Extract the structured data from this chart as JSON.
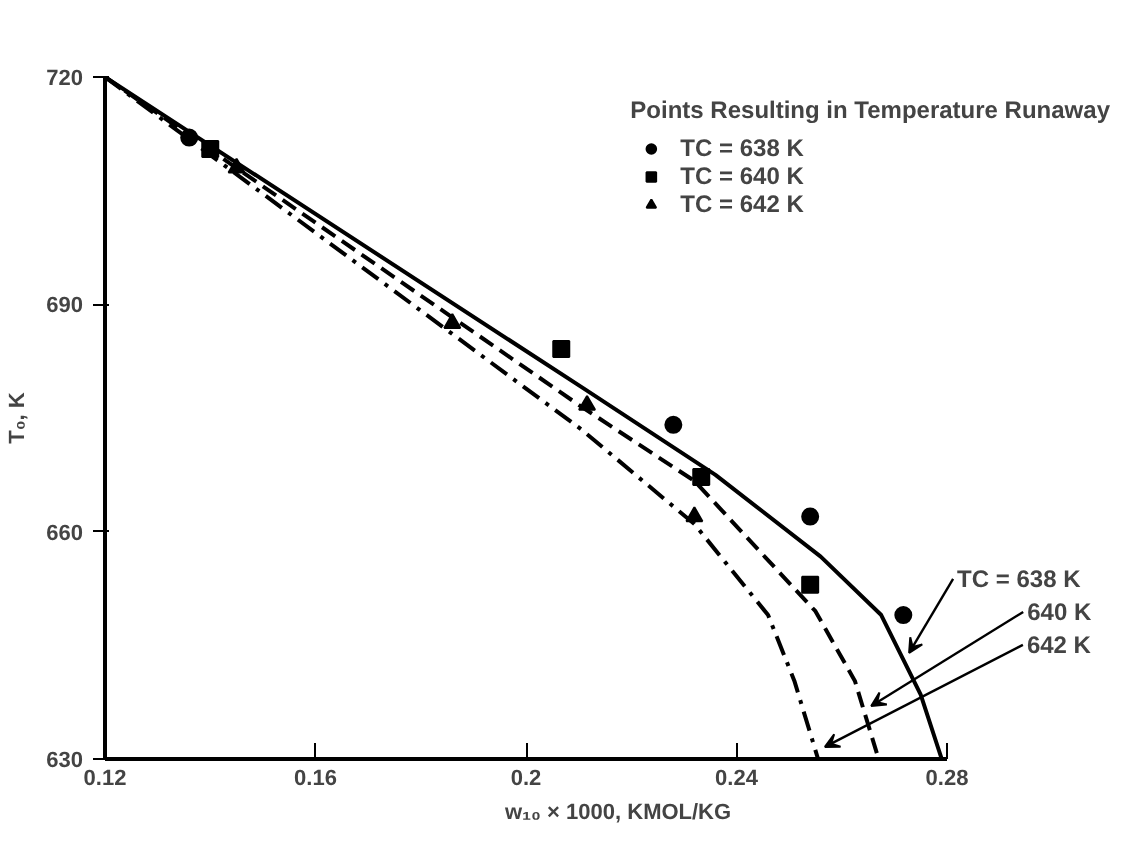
{
  "chart_data": {
    "type": "line",
    "xlabel": "w₁₀ × 1000, KMOL/KG",
    "ylabel": "T₀, K",
    "legend_title": "Points Resulting in Temperature Runaway",
    "xlim": [
      0.12,
      0.28
    ],
    "ylim": [
      630,
      720
    ],
    "xticks": [
      0.12,
      0.16,
      0.2,
      0.24,
      0.28
    ],
    "yticks": [
      630,
      660,
      690,
      720
    ],
    "grid": false,
    "legend": "top right",
    "series": [
      {
        "type": "line",
        "color": "#000000",
        "line_style": "solid",
        "marker": "none",
        "x": [
          0.12,
          0.2105,
          0.236,
          0.256,
          0.2675,
          0.275,
          0.279
        ],
        "values": [
          720,
          679.1,
          667.5,
          656.7,
          649,
          638.5,
          630
        ]
      },
      {
        "type": "line",
        "color": "#000000",
        "line_style": "dashed",
        "marker": "none",
        "x": [
          0.12,
          0.2105,
          0.232,
          0.255,
          0.2625,
          0.267
        ],
        "values": [
          720,
          676.5,
          666.7,
          649.5,
          640.3,
          630
        ]
      },
      {
        "type": "line",
        "color": "#000000",
        "line_style": "dashdot",
        "marker": "none",
        "x": [
          0.12,
          0.2105,
          0.232,
          0.246,
          0.251,
          0.2555
        ],
        "values": [
          720,
          673.5,
          661,
          649,
          640.3,
          630
        ]
      },
      {
        "type": "scatter",
        "name": "TC = 638 K",
        "color": "#000000",
        "marker": "circle",
        "x": [
          0.136,
          0.228,
          0.254,
          0.2717
        ],
        "values": [
          712,
          674.1,
          662,
          649
        ]
      },
      {
        "type": "scatter",
        "name": "TC = 640 K",
        "color": "#000000",
        "marker": "square",
        "x": [
          0.14,
          0.2067,
          0.2333,
          0.254
        ],
        "values": [
          710.5,
          684.1,
          667.2,
          653
        ]
      },
      {
        "type": "scatter",
        "name": "TC = 642 K",
        "color": "#000000",
        "marker": "triangle",
        "x": [
          0.145,
          0.186,
          0.2116,
          0.232
        ],
        "values": [
          708,
          687.5,
          676.7,
          662
        ]
      }
    ],
    "annotations": [
      {
        "text": "TC = 638 K",
        "x": 0.2728,
        "y": 644
      },
      {
        "text": "640 K",
        "x": 0.2656,
        "y": 637
      },
      {
        "text": "642 K",
        "x": 0.2568,
        "y": 631.6
      }
    ]
  }
}
